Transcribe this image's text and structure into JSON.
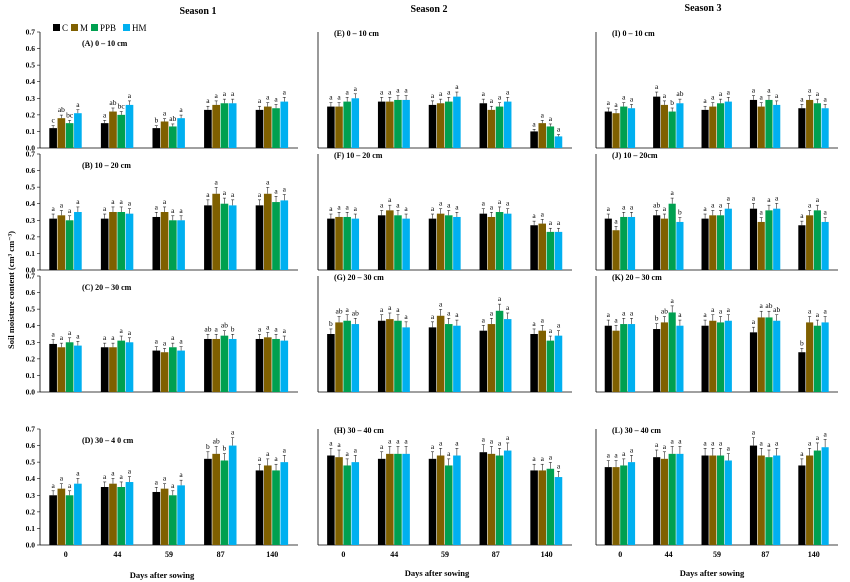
{
  "figure": {
    "seasons": [
      "Season  1",
      "Season 2",
      "Season 3"
    ],
    "ylabel": "Soil moisture content (cm³ cm⁻³)",
    "xlabel": "Days after sowing",
    "legend": [
      "C",
      "M",
      "PPB",
      "HM"
    ]
  },
  "colors": {
    "C": "#000000",
    "M": "#7f6000",
    "PPB": "#00a050",
    "HM": "#00b0f0"
  },
  "chart_data": [
    {
      "type": "bar",
      "panel": "(A) 0 – 10 cm",
      "season": 1,
      "depth_index": 0,
      "categories": [
        "0",
        "44",
        "59",
        "87",
        "140"
      ],
      "ylim": [
        0,
        0.7
      ],
      "series": [
        {
          "name": "C",
          "values": [
            0.12,
            0.15,
            0.12,
            0.23,
            0.23
          ]
        },
        {
          "name": "M",
          "values": [
            0.18,
            0.22,
            0.16,
            0.26,
            0.25
          ]
        },
        {
          "name": "PPB",
          "values": [
            0.15,
            0.2,
            0.13,
            0.27,
            0.24
          ]
        },
        {
          "name": "HM",
          "values": [
            0.21,
            0.26,
            0.18,
            0.27,
            0.28
          ]
        }
      ],
      "letters": [
        [
          "c",
          "ab",
          "bc",
          "a"
        ],
        [
          "a",
          "ab",
          "bc",
          "a"
        ],
        [
          "b",
          "a",
          "ab",
          "a"
        ],
        [
          "a",
          "a",
          "a",
          "a"
        ],
        [
          "a",
          "a",
          "a",
          "a"
        ]
      ]
    },
    {
      "type": "bar",
      "panel": "(B) 10 – 20 cm",
      "season": 1,
      "depth_index": 1,
      "categories": [
        "0",
        "44",
        "59",
        "87",
        "140"
      ],
      "ylim": [
        0,
        0.7
      ],
      "series": [
        {
          "name": "C",
          "values": [
            0.31,
            0.31,
            0.32,
            0.39,
            0.39
          ]
        },
        {
          "name": "M",
          "values": [
            0.33,
            0.35,
            0.35,
            0.46,
            0.46
          ]
        },
        {
          "name": "PPB",
          "values": [
            0.3,
            0.35,
            0.3,
            0.4,
            0.41
          ]
        },
        {
          "name": "HM",
          "values": [
            0.35,
            0.34,
            0.3,
            0.39,
            0.42
          ]
        }
      ],
      "letters": [
        [
          "a",
          "a",
          "a",
          "a"
        ],
        [
          "a",
          "a",
          "a",
          "a"
        ],
        [
          "a",
          "a",
          "a",
          "a"
        ],
        [
          "a",
          "a",
          "a",
          "a"
        ],
        [
          "a",
          "a",
          "a",
          "a"
        ]
      ]
    },
    {
      "type": "bar",
      "panel": "(C) 20 – 30 cm",
      "season": 1,
      "depth_index": 2,
      "categories": [
        "0",
        "44",
        "59",
        "87",
        "140"
      ],
      "ylim": [
        0,
        0.7
      ],
      "series": [
        {
          "name": "C",
          "values": [
            0.29,
            0.27,
            0.25,
            0.32,
            0.32
          ]
        },
        {
          "name": "M",
          "values": [
            0.27,
            0.27,
            0.24,
            0.32,
            0.33
          ]
        },
        {
          "name": "PPB",
          "values": [
            0.3,
            0.31,
            0.27,
            0.34,
            0.32
          ]
        },
        {
          "name": "HM",
          "values": [
            0.28,
            0.3,
            0.25,
            0.32,
            0.31
          ]
        }
      ],
      "letters": [
        [
          "a",
          "a",
          "a",
          "a"
        ],
        [
          "a",
          "a",
          "a",
          "a"
        ],
        [
          "a",
          "a",
          "a",
          "a"
        ],
        [
          "ab",
          "a",
          "ab",
          "b"
        ],
        [
          "a",
          "a",
          "a",
          "a"
        ]
      ]
    },
    {
      "type": "bar",
      "panel": "(D)  30 – 4 0 cm",
      "season": 1,
      "depth_index": 3,
      "categories": [
        "0",
        "44",
        "59",
        "87",
        "140"
      ],
      "ylim": [
        0,
        0.7
      ],
      "series": [
        {
          "name": "C",
          "values": [
            0.3,
            0.35,
            0.32,
            0.52,
            0.45
          ]
        },
        {
          "name": "M",
          "values": [
            0.34,
            0.37,
            0.34,
            0.55,
            0.48
          ]
        },
        {
          "name": "PPB",
          "values": [
            0.3,
            0.35,
            0.3,
            0.51,
            0.45
          ]
        },
        {
          "name": "HM",
          "values": [
            0.37,
            0.38,
            0.36,
            0.6,
            0.5
          ]
        }
      ],
      "letters": [
        [
          "a",
          "a",
          "a",
          "a"
        ],
        [
          "a",
          "a",
          "a",
          "a"
        ],
        [
          "a",
          "a",
          "a",
          "a"
        ],
        [
          "b",
          "ab",
          "b",
          "a"
        ],
        [
          "a",
          "a",
          "a",
          "a"
        ]
      ]
    },
    {
      "type": "bar",
      "panel": "(E) 0 – 10 cm",
      "season": 2,
      "depth_index": 0,
      "categories": [
        "0",
        "44",
        "59",
        "87",
        "140"
      ],
      "ylim": [
        0,
        0.7
      ],
      "series": [
        {
          "name": "C",
          "values": [
            0.25,
            0.28,
            0.26,
            0.27,
            0.1
          ]
        },
        {
          "name": "M",
          "values": [
            0.25,
            0.28,
            0.27,
            0.23,
            0.15
          ]
        },
        {
          "name": "PPB",
          "values": [
            0.28,
            0.29,
            0.28,
            0.25,
            0.13
          ]
        },
        {
          "name": "HM",
          "values": [
            0.3,
            0.29,
            0.31,
            0.28,
            0.07
          ]
        }
      ],
      "letters": [
        [
          "a",
          "a",
          "a",
          "a"
        ],
        [
          "a",
          "a",
          "a",
          "a"
        ],
        [
          "a",
          "a",
          "a",
          "a"
        ],
        [
          "a",
          "a",
          "a",
          "a"
        ],
        [
          "a",
          "a",
          "a",
          "a"
        ]
      ]
    },
    {
      "type": "bar",
      "panel": "(F) 10 – 20 cm",
      "season": 2,
      "depth_index": 1,
      "categories": [
        "0",
        "44",
        "59",
        "87",
        "140"
      ],
      "ylim": [
        0,
        0.7
      ],
      "series": [
        {
          "name": "C",
          "values": [
            0.31,
            0.33,
            0.31,
            0.34,
            0.27
          ]
        },
        {
          "name": "M",
          "values": [
            0.32,
            0.36,
            0.34,
            0.32,
            0.28
          ]
        },
        {
          "name": "PPB",
          "values": [
            0.32,
            0.33,
            0.33,
            0.35,
            0.23
          ]
        },
        {
          "name": "HM",
          "values": [
            0.31,
            0.31,
            0.32,
            0.34,
            0.23
          ]
        }
      ],
      "letters": [
        [
          "a",
          "a",
          "a",
          "a"
        ],
        [
          "a",
          "a",
          "a",
          "a"
        ],
        [
          "a",
          "a",
          "a",
          "a"
        ],
        [
          "a",
          "a",
          "a",
          "a"
        ],
        [
          "a",
          "a",
          "a",
          "a"
        ]
      ]
    },
    {
      "type": "bar",
      "panel": "(G) 20 – 30 cm",
      "season": 2,
      "depth_index": 2,
      "categories": [
        "0",
        "44",
        "59",
        "87",
        "140"
      ],
      "ylim": [
        0,
        0.7
      ],
      "series": [
        {
          "name": "C",
          "values": [
            0.35,
            0.43,
            0.39,
            0.37,
            0.35
          ]
        },
        {
          "name": "M",
          "values": [
            0.42,
            0.44,
            0.46,
            0.41,
            0.37
          ]
        },
        {
          "name": "PPB",
          "values": [
            0.43,
            0.43,
            0.41,
            0.49,
            0.31
          ]
        },
        {
          "name": "HM",
          "values": [
            0.41,
            0.39,
            0.4,
            0.44,
            0.34
          ]
        }
      ],
      "letters": [
        [
          "b",
          "ab",
          "a",
          "ab"
        ],
        [
          "a",
          "a",
          "a",
          "a"
        ],
        [
          "a",
          "a",
          "a",
          "a"
        ],
        [
          "a",
          "a",
          "a",
          "a"
        ],
        [
          "a",
          "a",
          "a",
          "a"
        ]
      ]
    },
    {
      "type": "bar",
      "panel": "(H) 30  –  40 cm",
      "season": 2,
      "depth_index": 3,
      "categories": [
        "0",
        "44",
        "59",
        "87",
        "140"
      ],
      "ylim": [
        0,
        0.7
      ],
      "series": [
        {
          "name": "C",
          "values": [
            0.54,
            0.52,
            0.52,
            0.56,
            0.45
          ]
        },
        {
          "name": "M",
          "values": [
            0.53,
            0.55,
            0.54,
            0.55,
            0.45
          ]
        },
        {
          "name": "PPB",
          "values": [
            0.48,
            0.55,
            0.48,
            0.54,
            0.46
          ]
        },
        {
          "name": "HM",
          "values": [
            0.5,
            0.55,
            0.54,
            0.57,
            0.41
          ]
        }
      ],
      "letters": [
        [
          "a",
          "a",
          "a",
          "a"
        ],
        [
          "a",
          "a",
          "a",
          "a"
        ],
        [
          "a",
          "a",
          "a",
          "a"
        ],
        [
          "a",
          "a",
          "a",
          "a"
        ],
        [
          "a",
          "a",
          "a",
          "a"
        ]
      ]
    },
    {
      "type": "bar",
      "panel": "(I) 0 – 10 cm",
      "season": 3,
      "depth_index": 0,
      "categories": [
        "0",
        "44",
        "59",
        "87",
        "140"
      ],
      "ylim": [
        0,
        0.7
      ],
      "series": [
        {
          "name": "C",
          "values": [
            0.22,
            0.31,
            0.23,
            0.29,
            0.24
          ]
        },
        {
          "name": "M",
          "values": [
            0.21,
            0.26,
            0.25,
            0.25,
            0.29
          ]
        },
        {
          "name": "PPB",
          "values": [
            0.25,
            0.22,
            0.27,
            0.29,
            0.27
          ]
        },
        {
          "name": "HM",
          "values": [
            0.24,
            0.27,
            0.28,
            0.26,
            0.24
          ]
        }
      ],
      "letters": [
        [
          "a",
          "a",
          "a",
          "a"
        ],
        [
          "a",
          "a",
          "b",
          "ab"
        ],
        [
          "a",
          "a",
          "a",
          "a"
        ],
        [
          "a",
          "a",
          "a",
          "a"
        ],
        [
          "a",
          "a",
          "a",
          "a"
        ]
      ]
    },
    {
      "type": "bar",
      "panel": "(J) 10 – 20cm",
      "season": 3,
      "depth_index": 1,
      "categories": [
        "0",
        "44",
        "59",
        "87",
        "140"
      ],
      "ylim": [
        0,
        0.7
      ],
      "series": [
        {
          "name": "C",
          "values": [
            0.31,
            0.33,
            0.31,
            0.37,
            0.27
          ]
        },
        {
          "name": "M",
          "values": [
            0.24,
            0.31,
            0.33,
            0.29,
            0.33
          ]
        },
        {
          "name": "PPB",
          "values": [
            0.32,
            0.4,
            0.33,
            0.36,
            0.36
          ]
        },
        {
          "name": "HM",
          "values": [
            0.32,
            0.29,
            0.37,
            0.37,
            0.29
          ]
        }
      ],
      "letters": [
        [
          "a",
          "a",
          "a",
          "a"
        ],
        [
          "ab",
          "a",
          "a",
          "b"
        ],
        [
          "a",
          "a",
          "a",
          "a"
        ],
        [
          "a",
          "a",
          "a",
          "a"
        ],
        [
          "a",
          "a",
          "a",
          "a"
        ]
      ]
    },
    {
      "type": "bar",
      "panel": "(K) 20 – 30 cm",
      "season": 3,
      "depth_index": 2,
      "categories": [
        "0",
        "44",
        "59",
        "87",
        "140"
      ],
      "ylim": [
        0,
        0.7
      ],
      "series": [
        {
          "name": "C",
          "values": [
            0.4,
            0.38,
            0.4,
            0.36,
            0.24
          ]
        },
        {
          "name": "M",
          "values": [
            0.37,
            0.42,
            0.43,
            0.45,
            0.42
          ]
        },
        {
          "name": "PPB",
          "values": [
            0.41,
            0.48,
            0.42,
            0.45,
            0.4
          ]
        },
        {
          "name": "HM",
          "values": [
            0.41,
            0.4,
            0.43,
            0.43,
            0.42
          ]
        }
      ],
      "letters": [
        [
          "a",
          "a",
          "a",
          "a"
        ],
        [
          "b",
          "ab",
          "a",
          "a"
        ],
        [
          "a",
          "a",
          "a",
          "a"
        ],
        [
          "a",
          "a",
          "ab",
          "ab"
        ],
        [
          "b",
          "a",
          "a",
          "a"
        ]
      ]
    },
    {
      "type": "bar",
      "panel": "(L) 30 – 40 cm",
      "season": 3,
      "depth_index": 3,
      "categories": [
        "0",
        "44",
        "59",
        "87",
        "140"
      ],
      "ylim": [
        0,
        0.7
      ],
      "series": [
        {
          "name": "C",
          "values": [
            0.47,
            0.53,
            0.54,
            0.6,
            0.48
          ]
        },
        {
          "name": "M",
          "values": [
            0.47,
            0.52,
            0.54,
            0.54,
            0.54
          ]
        },
        {
          "name": "PPB",
          "values": [
            0.48,
            0.55,
            0.54,
            0.53,
            0.57
          ]
        },
        {
          "name": "HM",
          "values": [
            0.5,
            0.55,
            0.51,
            0.54,
            0.59
          ]
        }
      ],
      "letters": [
        [
          "a",
          "a",
          "a",
          "a"
        ],
        [
          "a",
          "a",
          "a",
          "a"
        ],
        [
          "a",
          "a",
          "a",
          "a"
        ],
        [
          "a",
          "a",
          "a",
          "a"
        ],
        [
          "a",
          "a",
          "a",
          "a"
        ]
      ]
    }
  ]
}
